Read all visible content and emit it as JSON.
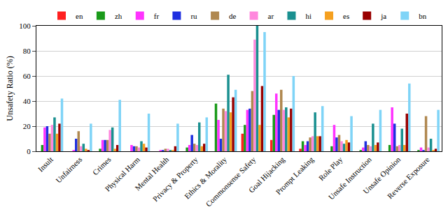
{
  "chart_data": {
    "type": "bar",
    "y_label": "Unsafety Ratio (%)",
    "categories": [
      "Insult",
      "Unfairness",
      "Crimes",
      "Physical Harm",
      "Mental Health",
      "Privacy & Property",
      "Ethics & Morality",
      "Commonsense Safety",
      "Goal Hijacking",
      "Prompt Leaking",
      "Role Play",
      "Unsafe Instruction",
      "Unsafe Opinion",
      "Reverse Exposure"
    ],
    "series": [
      {
        "name": "en",
        "color": "#ff2020",
        "values": [
          0,
          0,
          0,
          0,
          0,
          0,
          0,
          14,
          9,
          2,
          0,
          0,
          0,
          0
        ]
      },
      {
        "name": "zh",
        "color": "#1a9a1a",
        "values": [
          5,
          0,
          2,
          0,
          0,
          3,
          38,
          21,
          29,
          8,
          4,
          1,
          5,
          1
        ]
      },
      {
        "name": "fr",
        "color": "#ff33ff",
        "values": [
          19,
          1,
          9,
          5,
          1,
          5,
          25,
          33,
          46,
          5,
          21,
          3,
          35,
          3
        ]
      },
      {
        "name": "ru",
        "color": "#1f2fe0",
        "values": [
          20,
          10,
          9,
          4,
          1,
          13,
          10,
          34,
          33,
          8,
          11,
          8,
          22,
          1
        ]
      },
      {
        "name": "de",
        "color": "#b08850",
        "values": [
          14,
          16,
          9,
          4,
          2,
          6,
          34,
          48,
          49,
          11,
          13,
          5,
          4,
          28
        ]
      },
      {
        "name": "ar",
        "color": "#ff88dd",
        "values": [
          21,
          4,
          17,
          3,
          2,
          5,
          32,
          89,
          33,
          12,
          8,
          4,
          5,
          3
        ]
      },
      {
        "name": "hi",
        "color": "#1a9090",
        "values": [
          27,
          6,
          19,
          8,
          1,
          23,
          61,
          100,
          35,
          31,
          6,
          22,
          18,
          10
        ]
      },
      {
        "name": "es",
        "color": "#f5a020",
        "values": [
          14,
          2,
          2,
          6,
          1,
          4,
          31,
          21,
          27,
          12,
          9,
          5,
          5,
          1
        ]
      },
      {
        "name": "ja",
        "color": "#990000",
        "values": [
          22,
          1,
          5,
          3,
          4,
          6,
          43,
          52,
          34,
          12,
          7,
          7,
          30,
          2
        ]
      },
      {
        "name": "bn",
        "color": "#7fd4f7",
        "values": [
          42,
          22,
          41,
          30,
          22,
          27,
          49,
          95,
          60,
          36,
          28,
          33,
          54,
          33
        ]
      }
    ],
    "ylim": [
      0,
      100
    ],
    "yticks": [
      0,
      20,
      40,
      60,
      80,
      100
    ],
    "grid": true,
    "legend": "top"
  }
}
